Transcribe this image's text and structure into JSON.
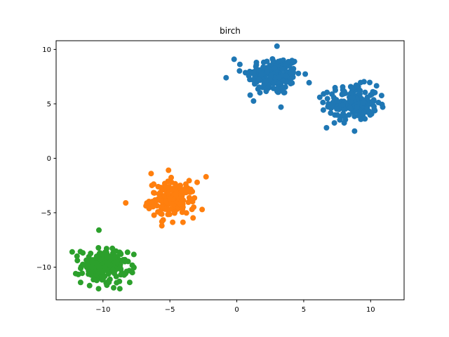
{
  "chart_data": {
    "type": "scatter",
    "title": "birch",
    "xlabel": "",
    "ylabel": "",
    "xlim": [
      -13.5,
      12.5
    ],
    "ylim": [
      -13.0,
      10.8
    ],
    "xticks": [
      -10,
      -5,
      0,
      5,
      10
    ],
    "yticks": [
      -10,
      -5,
      0,
      5,
      10
    ],
    "xtick_labels": [
      "−10",
      "−5",
      "0",
      "5",
      "10"
    ],
    "ytick_labels": [
      "−10",
      "−5",
      "0",
      "5",
      "10"
    ],
    "grid": false,
    "legend": "none",
    "series": [
      {
        "color": "#1f77b4",
        "clusters": [
          {
            "center": [
              2.8,
              7.6
            ],
            "spread": [
              1.0,
              0.9
            ],
            "n": 180
          },
          {
            "center": [
              8.7,
              5.1
            ],
            "spread": [
              0.9,
              0.8
            ],
            "n": 180
          }
        ],
        "outliers": [
          [
            -0.8,
            7.4
          ],
          [
            -0.2,
            9.1
          ],
          [
            3.0,
            10.3
          ],
          [
            3.3,
            4.7
          ],
          [
            6.7,
            2.8
          ],
          [
            8.8,
            2.5
          ],
          [
            10.9,
            4.7
          ],
          [
            6.2,
            5.6
          ],
          [
            1.0,
            5.8
          ]
        ]
      },
      {
        "color": "#ff7f0e",
        "clusters": [
          {
            "center": [
              -4.8,
              -3.8
            ],
            "spread": [
              0.85,
              0.8
            ],
            "n": 180
          }
        ],
        "outliers": [
          [
            -8.3,
            -4.1
          ],
          [
            -2.3,
            -1.7
          ],
          [
            -5.6,
            -6.2
          ],
          [
            -6.4,
            -1.4
          ],
          [
            -5.1,
            -1.1
          ]
        ]
      },
      {
        "color": "#2ca02c",
        "clusters": [
          {
            "center": [
              -9.9,
              -9.9
            ],
            "spread": [
              0.85,
              0.8
            ],
            "n": 180
          }
        ],
        "outliers": [
          [
            -10.3,
            -6.6
          ],
          [
            -12.3,
            -8.6
          ],
          [
            -9.2,
            -11.9
          ],
          [
            -8.0,
            -11.4
          ],
          [
            -7.8,
            -10.5
          ],
          [
            -11.0,
            -11.7
          ]
        ]
      }
    ]
  }
}
